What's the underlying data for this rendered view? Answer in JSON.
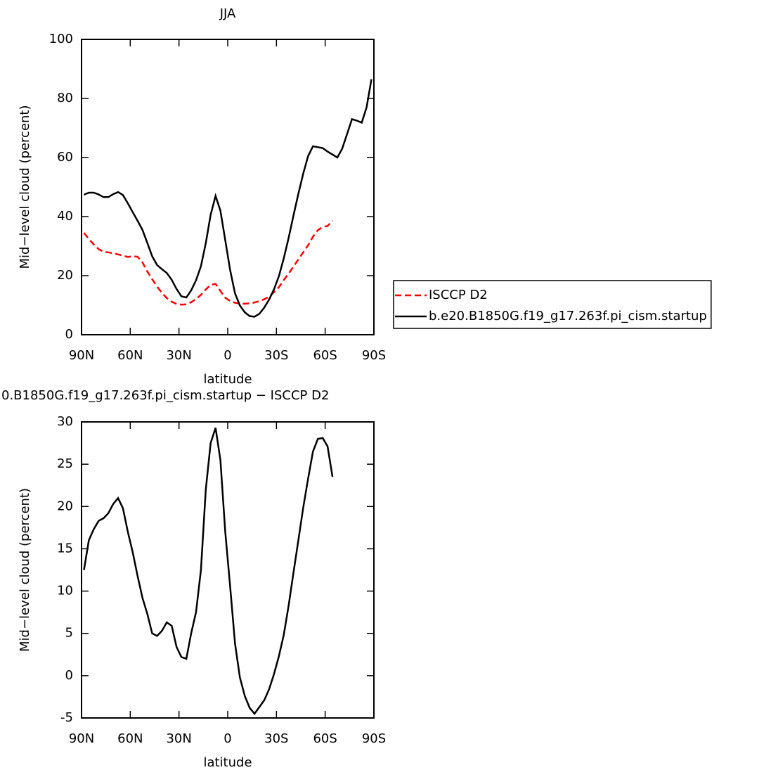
{
  "chart_data": [
    {
      "type": "line",
      "title": "JJA",
      "xlabel": "latitude",
      "ylabel": "Mid−level cloud (percent)",
      "x": [
        88.5,
        85.5,
        82.5,
        79.5,
        76.5,
        73.5,
        70.5,
        67.5,
        64.5,
        61.5,
        58.5,
        55.5,
        52.5,
        49.5,
        46.5,
        43.5,
        40.5,
        37.5,
        34.5,
        31.5,
        28.5,
        25.5,
        22.5,
        19.5,
        16.5,
        13.5,
        10.5,
        7.5,
        4.5,
        1.5,
        -1.5,
        -4.5,
        -7.5,
        -10.5,
        -13.5,
        -16.5,
        -19.5,
        -22.5,
        -25.5,
        -28.5,
        -31.5,
        -34.5,
        -37.5,
        -40.5,
        -43.5,
        -46.5,
        -49.5,
        -52.5,
        -55.5,
        -58.5,
        -61.5,
        -64.5,
        -67.5,
        -70.5,
        -73.5,
        -76.5,
        -79.5,
        -82.5,
        -85.5,
        -88.5
      ],
      "xlim": [
        90,
        -90
      ],
      "xticks": [
        {
          "value": 90,
          "label": "90N"
        },
        {
          "value": 60,
          "label": "60N"
        },
        {
          "value": 30,
          "label": "30N"
        },
        0,
        {
          "value": -30,
          "label": "30S"
        },
        {
          "value": -60,
          "label": "60S"
        },
        {
          "value": -90,
          "label": "90S"
        }
      ],
      "ylim": [
        0,
        100
      ],
      "yticks": [
        0,
        20,
        40,
        60,
        80,
        100
      ],
      "legend_position": "right",
      "series": [
        {
          "name": "ISCCP D2",
          "color": "#ff0000",
          "line_style": "dashed",
          "values": [
            34.5,
            32.4,
            30.6,
            29.0,
            28.1,
            27.9,
            27.6,
            27.2,
            26.8,
            26.3,
            26.6,
            26.4,
            24.5,
            21.4,
            18.8,
            16.3,
            14.2,
            12.4,
            11.2,
            10.4,
            10.2,
            10.3,
            11.0,
            12.1,
            13.5,
            15.3,
            16.9,
            17.2,
            14.8,
            12.5,
            11.4,
            10.8,
            10.5,
            10.5,
            10.6,
            10.9,
            11.4,
            12.0,
            12.9,
            14.4,
            16.1,
            18.5,
            20.7,
            23.1,
            25.5,
            27.9,
            30.3,
            33.2,
            35.4,
            36.5,
            36.8,
            38.6,
            null,
            null,
            null,
            null,
            null,
            null,
            null,
            null
          ]
        },
        {
          "name": "b.e20.B1850G.f19_g17.263f.pi_cism.startup",
          "color": "#000000",
          "line_style": "solid",
          "values": [
            47.4,
            48.1,
            48.1,
            47.5,
            46.6,
            46.6,
            47.6,
            48.3,
            47.3,
            44.5,
            41.5,
            38.6,
            35.5,
            31.1,
            26.6,
            23.6,
            22.2,
            20.9,
            18.6,
            15.5,
            13.0,
            12.6,
            15.0,
            18.4,
            23.2,
            31.0,
            40.6,
            47.0,
            42.0,
            32.0,
            21.8,
            14.0,
            9.9,
            7.6,
            6.3,
            6.1,
            7.1,
            9.2,
            11.9,
            15.4,
            19.8,
            25.8,
            32.8,
            40.4,
            47.7,
            54.6,
            60.5,
            63.8,
            63.5,
            63.2,
            62.0,
            61.0,
            60.0,
            63.0,
            68.0,
            73.0,
            72.5,
            71.8,
            77.0,
            86.5
          ]
        }
      ]
    },
    {
      "type": "line",
      "title": "0.B1850G.f19_g17.263f.pi_cism.startup − ISCCP D2",
      "xlabel": "latitude",
      "ylabel": "Mid−level cloud (percent)",
      "x": [
        88.5,
        85.5,
        82.5,
        79.5,
        76.5,
        73.5,
        70.5,
        67.5,
        64.5,
        61.5,
        58.5,
        55.5,
        52.5,
        49.5,
        46.5,
        43.5,
        40.5,
        37.5,
        34.5,
        31.5,
        28.5,
        25.5,
        22.5,
        19.5,
        16.5,
        13.5,
        10.5,
        7.5,
        4.5,
        1.5,
        -1.5,
        -4.5,
        -7.5,
        -10.5,
        -13.5,
        -16.5,
        -19.5,
        -22.5,
        -25.5,
        -28.5,
        -31.5,
        -34.5,
        -37.5,
        -40.5,
        -43.5,
        -46.5,
        -49.5,
        -52.5,
        -55.5,
        -58.5,
        -61.5,
        -64.5,
        -67.5,
        -70.5,
        -73.5,
        -76.5,
        -79.5,
        -82.5,
        -85.5,
        -88.5
      ],
      "xlim": [
        90,
        -90
      ],
      "xticks": [
        {
          "value": 90,
          "label": "90N"
        },
        {
          "value": 60,
          "label": "60N"
        },
        {
          "value": 30,
          "label": "30N"
        },
        0,
        {
          "value": -30,
          "label": "30S"
        },
        {
          "value": -60,
          "label": "60S"
        },
        {
          "value": -90,
          "label": "90S"
        }
      ],
      "ylim": [
        -5,
        30
      ],
      "yticks": [
        -5,
        0,
        5,
        10,
        15,
        20,
        25,
        30
      ],
      "series": [
        {
          "color": "#000000",
          "line_style": "solid",
          "values": [
            12.5,
            16.0,
            17.3,
            18.3,
            18.6,
            19.2,
            20.3,
            21.0,
            19.8,
            17.0,
            14.6,
            11.8,
            9.2,
            7.3,
            5.0,
            4.7,
            5.3,
            6.3,
            5.9,
            3.4,
            2.2,
            2.0,
            5.0,
            7.5,
            12.5,
            22.0,
            27.5,
            29.3,
            25.5,
            17.0,
            10.5,
            3.8,
            -0.2,
            -2.4,
            -3.8,
            -4.5,
            -3.7,
            -2.9,
            -1.6,
            0.2,
            2.3,
            4.8,
            8.3,
            12.2,
            16.0,
            19.9,
            23.3,
            26.5,
            28.0,
            28.1,
            27.1,
            23.5,
            null,
            null,
            null,
            null,
            null,
            null,
            null,
            null
          ]
        }
      ]
    }
  ]
}
